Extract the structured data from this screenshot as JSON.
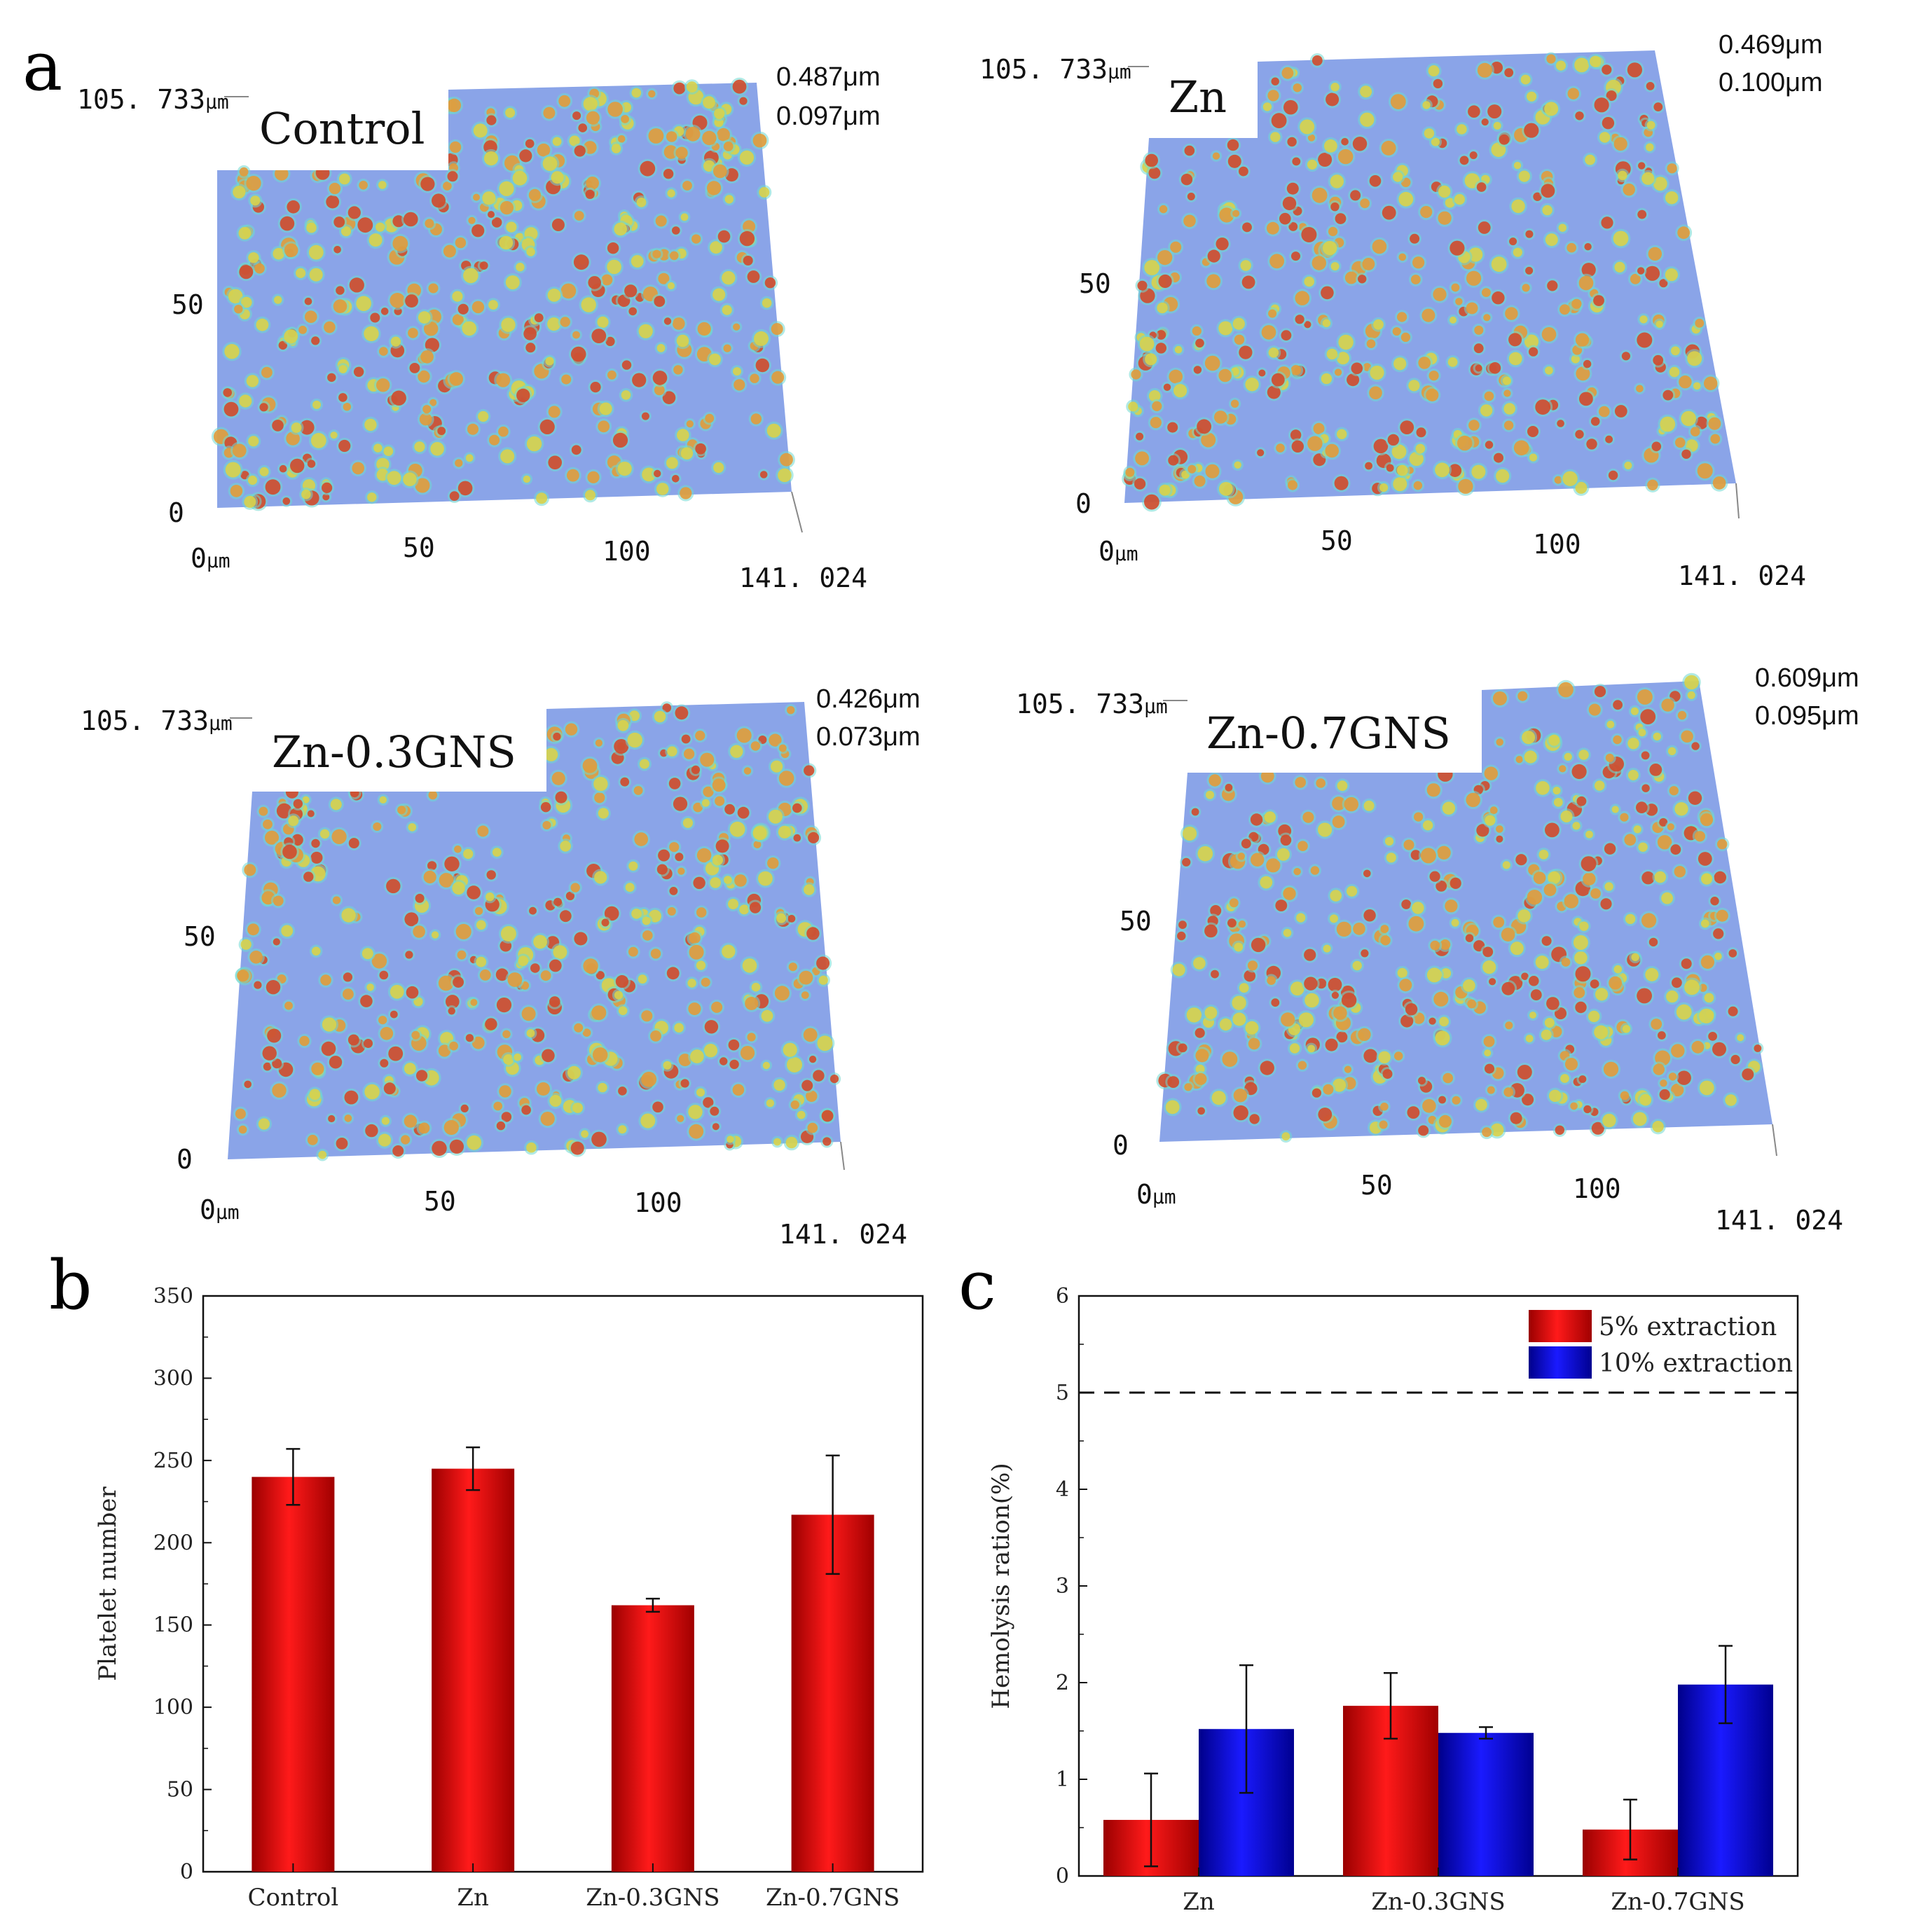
{
  "panel_letters": {
    "a": "a",
    "b": "b",
    "c": "c"
  },
  "afm_panels": [
    {
      "label": "Control",
      "y_max_label": "105. 733",
      "y_mid_label": "50",
      "y_zero_label": "0",
      "x_zero_label": "0",
      "x_50_label": "50",
      "x_100_label": "100",
      "x_max_label": "141. 024",
      "unit": "μm",
      "height_max": "0.487μm",
      "height_min": "0.097μm"
    },
    {
      "label": "Zn",
      "y_max_label": "105. 733",
      "y_mid_label": "50",
      "y_zero_label": "0",
      "x_zero_label": "0",
      "x_50_label": "50",
      "x_100_label": "100",
      "x_max_label": "141. 024",
      "unit": "μm",
      "height_max": "0.469μm",
      "height_min": "0.100μm"
    },
    {
      "label": "Zn-0.3GNS",
      "y_max_label": "105. 733",
      "y_mid_label": "50",
      "y_zero_label": "0",
      "x_zero_label": "0",
      "x_50_label": "50",
      "x_100_label": "100",
      "x_max_label": "141. 024",
      "unit": "μm",
      "height_max": "0.426μm",
      "height_min": "0.073μm"
    },
    {
      "label": "Zn-0.7GNS",
      "y_max_label": "105. 733",
      "y_mid_label": "50",
      "y_zero_label": "0",
      "x_zero_label": "0",
      "x_50_label": "50",
      "x_100_label": "100",
      "x_max_label": "141. 024",
      "unit": "μm",
      "height_max": "0.609μm",
      "height_min": "0.095μm"
    }
  ],
  "colors": {
    "surface": "#8aa4e8",
    "spot_red": "#d24a2a",
    "spot_orange": "#e29b3a",
    "spot_yellow": "#d9d24a",
    "spot_cyan": "#6fd8d0",
    "bar_red": "#e80000",
    "bar_blue": "#0a0ac8"
  },
  "chart_data": [
    {
      "type": "bar",
      "title": "",
      "xlabel": "",
      "ylabel": "Platelet number",
      "ylim": [
        0,
        350
      ],
      "yticks": [
        "0",
        "50",
        "100",
        "150",
        "200",
        "250",
        "300",
        "350"
      ],
      "categories": [
        "Control",
        "Zn",
        "Zn-0.3GNS",
        "Zn-0.7GNS"
      ],
      "series": [
        {
          "name": "Platelet number",
          "values": [
            240,
            245,
            162,
            217
          ],
          "errors": [
            17,
            13,
            4,
            36
          ]
        }
      ],
      "grid": false
    },
    {
      "type": "bar",
      "title": "",
      "xlabel": "",
      "ylabel": "Hemolysis ration(%)",
      "ylim": [
        0,
        6
      ],
      "yticks": [
        "0",
        "1",
        "2",
        "3",
        "4",
        "5",
        "6"
      ],
      "categories": [
        "Zn",
        "Zn-0.3GNS",
        "Zn-0.7GNS"
      ],
      "series": [
        {
          "name": "5% extraction",
          "values": [
            0.58,
            1.76,
            0.48
          ],
          "errors": [
            0.48,
            0.34,
            0.31
          ]
        },
        {
          "name": "10% extraction",
          "values": [
            1.52,
            1.48,
            1.98
          ],
          "errors": [
            0.66,
            0.06,
            0.4
          ]
        }
      ],
      "reference_line": {
        "y": 5,
        "style": "dashed"
      },
      "legend": "top-right",
      "grid": false
    }
  ]
}
